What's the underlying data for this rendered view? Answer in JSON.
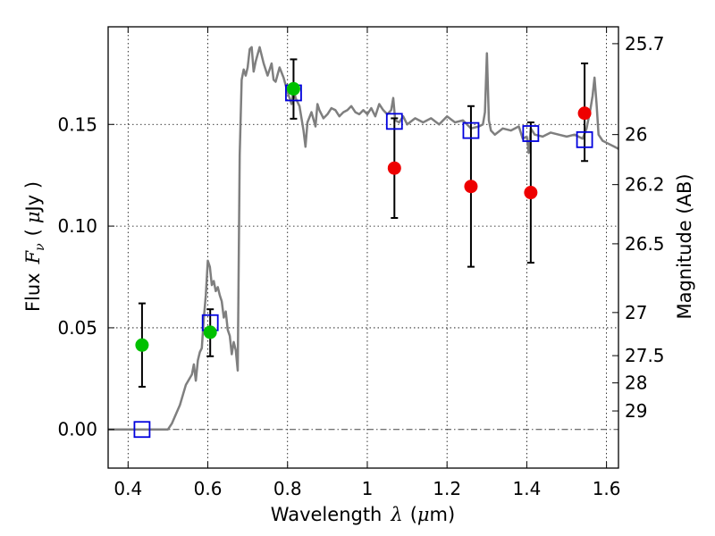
{
  "chart_data": {
    "type": "scatter",
    "title": "",
    "xlabel_parts": [
      "Wavelength",
      "λ",
      "(",
      "μ",
      "m)"
    ],
    "ylabel_parts": [
      "Flux",
      "F",
      "ν",
      "(",
      "μ",
      "Jy )"
    ],
    "y2label": "Magnitude (AB)",
    "xlim": [
      0.35,
      1.63
    ],
    "ylim": [
      -0.019,
      0.198
    ],
    "grid": true,
    "x_ticks": [
      {
        "value": 0.4,
        "label": "0.4"
      },
      {
        "value": 0.6,
        "label": "0.6"
      },
      {
        "value": 0.8,
        "label": "0.8"
      },
      {
        "value": 1.0,
        "label": "1"
      },
      {
        "value": 1.2,
        "label": "1.2"
      },
      {
        "value": 1.4,
        "label": "1.4"
      },
      {
        "value": 1.6,
        "label": "1.6"
      }
    ],
    "y_ticks": [
      {
        "value": 0.0,
        "label": "0.00"
      },
      {
        "value": 0.05,
        "label": "0.05"
      },
      {
        "value": 0.1,
        "label": "0.10"
      },
      {
        "value": 0.15,
        "label": "0.15"
      }
    ],
    "mag_ticks": [
      {
        "flux": 0.1897,
        "label": "25.7"
      },
      {
        "flux": 0.145,
        "label": "26"
      },
      {
        "flux": 0.1204,
        "label": "26.2"
      },
      {
        "flux": 0.0913,
        "label": "26.5"
      },
      {
        "flux": 0.0575,
        "label": "27"
      },
      {
        "flux": 0.0363,
        "label": "27.5"
      },
      {
        "flux": 0.0229,
        "label": "28"
      },
      {
        "flux": 0.0091,
        "label": "29"
      }
    ],
    "colors": {
      "model": "#7f7f7f",
      "green": "#00c000",
      "red": "#ee0000",
      "square": "#0000dd",
      "error": "#000000"
    },
    "series": [
      {
        "name": "model SED",
        "kind": "line",
        "x": [
          0.35,
          0.5,
          0.51,
          0.53,
          0.545,
          0.56,
          0.565,
          0.57,
          0.575,
          0.58,
          0.585,
          0.59,
          0.595,
          0.6,
          0.605,
          0.61,
          0.615,
          0.62,
          0.625,
          0.63,
          0.635,
          0.64,
          0.645,
          0.65,
          0.655,
          0.66,
          0.665,
          0.67,
          0.675,
          0.68,
          0.685,
          0.69,
          0.695,
          0.7,
          0.705,
          0.71,
          0.715,
          0.72,
          0.73,
          0.74,
          0.75,
          0.76,
          0.765,
          0.77,
          0.78,
          0.79,
          0.8,
          0.81,
          0.815,
          0.82,
          0.83,
          0.84,
          0.845,
          0.85,
          0.86,
          0.87,
          0.875,
          0.88,
          0.89,
          0.9,
          0.91,
          0.92,
          0.93,
          0.94,
          0.95,
          0.96,
          0.97,
          0.98,
          0.99,
          1.0,
          1.01,
          1.02,
          1.03,
          1.04,
          1.05,
          1.06,
          1.065,
          1.07,
          1.08,
          1.09,
          1.1,
          1.12,
          1.14,
          1.16,
          1.18,
          1.2,
          1.22,
          1.24,
          1.26,
          1.28,
          1.29,
          1.295,
          1.3,
          1.305,
          1.31,
          1.32,
          1.34,
          1.36,
          1.38,
          1.39,
          1.4,
          1.405,
          1.41,
          1.42,
          1.44,
          1.46,
          1.48,
          1.5,
          1.52,
          1.54,
          1.55,
          1.56,
          1.565,
          1.57,
          1.575,
          1.58,
          1.59,
          1.6,
          1.62,
          1.63
        ],
        "y": [
          0.0,
          0.0,
          0.003,
          0.012,
          0.022,
          0.027,
          0.032,
          0.024,
          0.034,
          0.038,
          0.04,
          0.055,
          0.066,
          0.083,
          0.08,
          0.071,
          0.073,
          0.068,
          0.07,
          0.066,
          0.063,
          0.055,
          0.058,
          0.049,
          0.046,
          0.037,
          0.043,
          0.039,
          0.029,
          0.135,
          0.172,
          0.177,
          0.174,
          0.178,
          0.187,
          0.188,
          0.176,
          0.181,
          0.188,
          0.18,
          0.174,
          0.18,
          0.172,
          0.171,
          0.178,
          0.173,
          0.166,
          0.16,
          0.168,
          0.163,
          0.159,
          0.147,
          0.139,
          0.151,
          0.156,
          0.149,
          0.16,
          0.157,
          0.153,
          0.155,
          0.158,
          0.157,
          0.154,
          0.156,
          0.157,
          0.159,
          0.156,
          0.155,
          0.157,
          0.155,
          0.158,
          0.154,
          0.16,
          0.157,
          0.155,
          0.157,
          0.163,
          0.152,
          0.151,
          0.154,
          0.15,
          0.153,
          0.151,
          0.153,
          0.15,
          0.154,
          0.151,
          0.152,
          0.148,
          0.149,
          0.15,
          0.156,
          0.185,
          0.152,
          0.147,
          0.145,
          0.148,
          0.147,
          0.149,
          0.143,
          0.144,
          0.136,
          0.148,
          0.145,
          0.144,
          0.146,
          0.145,
          0.144,
          0.145,
          0.143,
          0.148,
          0.158,
          0.164,
          0.173,
          0.16,
          0.145,
          0.142,
          0.141,
          0.139,
          0.138
        ]
      },
      {
        "name": "green points",
        "kind": "points",
        "x": [
          0.435,
          0.606,
          0.815
        ],
        "y": [
          0.0415,
          0.0478,
          0.1675
        ],
        "yerr_low": [
          0.0205,
          0.0118,
          0.0147
        ],
        "yerr_high": [
          0.0205,
          0.0113,
          0.0145
        ]
      },
      {
        "name": "red points",
        "kind": "points",
        "x": [
          1.068,
          1.26,
          1.41,
          1.545
        ],
        "y": [
          0.1285,
          0.1195,
          0.1165,
          0.1555
        ],
        "yerr_low": [
          0.0245,
          0.0395,
          0.0345,
          0.0235
        ],
        "yerr_high": [
          0.0245,
          0.0395,
          0.0345,
          0.0245
        ]
      },
      {
        "name": "model photometry",
        "kind": "squares",
        "x": [
          0.435,
          0.606,
          0.815,
          1.068,
          1.26,
          1.41,
          1.545
        ],
        "y": [
          0.0,
          0.0525,
          0.1655,
          0.1515,
          0.147,
          0.1455,
          0.1425
        ]
      }
    ]
  }
}
